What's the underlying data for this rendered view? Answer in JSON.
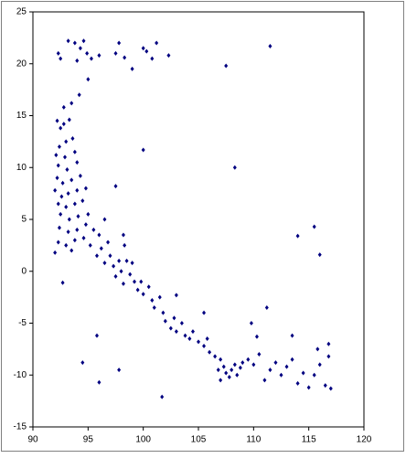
{
  "chart_data": {
    "type": "scatter",
    "color": "#000080",
    "x": [
      92.2,
      92.5,
      92.8,
      93.3,
      93.0,
      92.4,
      93.6,
      92.1,
      92.9,
      93.8,
      92.3,
      93.1,
      94.0,
      92.2,
      92.7,
      93.5,
      94.3,
      92.0,
      92.6,
      93.2,
      94.0,
      94.8,
      92.3,
      93.0,
      93.8,
      94.5,
      92.5,
      93.3,
      94.1,
      95.0,
      92.4,
      93.2,
      94.0,
      94.8,
      92.3,
      93.0,
      93.8,
      94.6,
      92.0,
      93.5,
      95.2,
      95.5,
      96.0,
      96.2,
      95.8,
      96.8,
      97.0,
      97.3,
      96.5,
      97.8,
      98.0,
      97.5,
      98.3,
      98.5,
      98.8,
      99.0,
      99.2,
      98.2,
      99.5,
      100.0,
      99.8,
      100.5,
      100.8,
      101.0,
      101.5,
      101.8,
      102.0,
      102.5,
      102.8,
      103.0,
      103.5,
      103.8,
      104.2,
      104.5,
      105.0,
      105.5,
      105.8,
      106.0,
      106.5,
      107.0,
      107.3,
      107.5,
      107.8,
      108.0,
      108.3,
      108.5,
      108.8,
      107.0,
      106.8,
      109.0,
      109.5,
      110.0,
      110.5,
      111.0,
      111.5,
      112.0,
      112.5,
      113.0,
      113.5,
      114.0,
      114.5,
      115.0,
      115.5,
      116.0,
      116.5,
      117.0,
      116.8,
      115.8,
      113.5,
      116.8,
      110.3,
      109.8,
      92.3,
      92.5,
      93.2,
      93.8,
      94.3,
      94.6,
      94.9,
      95.3,
      94.0,
      96.0,
      97.5,
      97.8,
      98.3,
      99.0,
      100.0,
      100.3,
      101.2,
      100.8,
      102.3,
      111.5,
      107.5,
      95.0,
      94.2,
      93.5,
      92.8,
      100.0,
      108.3,
      115.5,
      114.0,
      116.0,
      95.8,
      94.5,
      97.8,
      96.0,
      101.7,
      97.5,
      92.7,
      103.0,
      111.2,
      105.5,
      98.2,
      96.5
    ],
    "y": [
      14.5,
      13.8,
      14.2,
      14.6,
      12.5,
      12.0,
      12.8,
      11.2,
      11.0,
      11.5,
      10.2,
      9.8,
      10.5,
      9.0,
      8.5,
      8.8,
      9.2,
      7.8,
      7.2,
      7.5,
      7.8,
      8.0,
      6.5,
      6.2,
      6.5,
      6.8,
      5.5,
      5.0,
      5.3,
      5.5,
      4.2,
      3.8,
      4.0,
      4.5,
      2.8,
      2.5,
      3.0,
      3.2,
      1.8,
      2.0,
      2.5,
      4.0,
      3.5,
      2.2,
      1.5,
      2.8,
      1.5,
      0.5,
      0.8,
      1.0,
      0.0,
      -0.5,
      2.5,
      1.0,
      -0.3,
      0.8,
      -1.0,
      -1.2,
      -1.8,
      -2.2,
      -1.0,
      -1.5,
      -2.8,
      -3.5,
      -2.5,
      -4.0,
      -4.8,
      -5.5,
      -4.5,
      -5.8,
      -5.0,
      -6.2,
      -6.5,
      -5.8,
      -6.8,
      -7.2,
      -6.5,
      -7.8,
      -8.2,
      -8.5,
      -9.2,
      -9.8,
      -10.2,
      -9.5,
      -9.0,
      -10.0,
      -9.3,
      -10.5,
      -9.5,
      -8.8,
      -8.5,
      -9.0,
      -8.0,
      -10.5,
      -9.5,
      -8.8,
      -10.0,
      -9.2,
      -8.5,
      -10.8,
      -9.8,
      -11.2,
      -10.0,
      -9.0,
      -11.0,
      -11.3,
      -8.2,
      -7.5,
      -6.2,
      -7.0,
      -6.3,
      -5.0,
      21.0,
      20.5,
      22.2,
      22.0,
      21.5,
      22.2,
      21.0,
      20.5,
      20.3,
      20.8,
      21.0,
      22.0,
      20.6,
      19.5,
      21.5,
      21.2,
      22.0,
      20.5,
      20.8,
      21.7,
      19.8,
      18.5,
      17.0,
      16.2,
      15.8,
      11.7,
      10.0,
      4.3,
      3.4,
      1.6,
      -6.2,
      -8.8,
      -9.5,
      -10.7,
      -12.1,
      8.2,
      -1.1,
      -2.3,
      -3.5,
      -4.0,
      3.5,
      5.0
    ],
    "xlim": [
      90,
      120
    ],
    "xticks": [
      90,
      95,
      100,
      105,
      110,
      115,
      120
    ],
    "ylim": [
      -15,
      25
    ],
    "yticks": [
      -15,
      -10,
      -5,
      0,
      5,
      10,
      15,
      20,
      25
    ]
  }
}
